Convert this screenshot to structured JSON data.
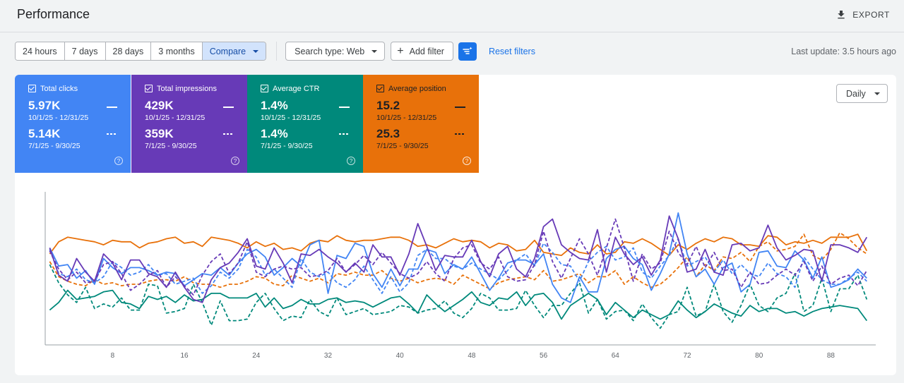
{
  "header": {
    "title": "Performance",
    "export_label": "EXPORT",
    "export_icon": "download-icon"
  },
  "toolbar": {
    "ranges": [
      "24 hours",
      "7 days",
      "28 days",
      "3 months"
    ],
    "compare_label": "Compare",
    "search_type_label": "Search type: Web",
    "add_filter_label": "Add filter",
    "reset_label": "Reset filters",
    "last_update": "Last update: 3.5 hours ago"
  },
  "metrics": [
    {
      "key": "clicks",
      "label": "Total clicks",
      "current": "5.97K",
      "current_range": "10/1/25 - 12/31/25",
      "previous": "5.14K",
      "previous_range": "7/1/25 - 9/30/25",
      "color": "#4285f4"
    },
    {
      "key": "impr",
      "label": "Total impressions",
      "current": "429K",
      "current_range": "10/1/25 - 12/31/25",
      "previous": "359K",
      "previous_range": "7/1/25 - 9/30/25",
      "color": "#673ab7"
    },
    {
      "key": "ctr",
      "label": "Average CTR",
      "current": "1.4%",
      "current_range": "10/1/25 - 12/31/25",
      "previous": "1.4%",
      "previous_range": "7/1/25 - 9/30/25",
      "color": "#00897b"
    },
    {
      "key": "pos",
      "label": "Average position",
      "current": "15.2",
      "current_range": "10/1/25 - 12/31/25",
      "previous": "25.3",
      "previous_range": "7/1/25 - 9/30/25",
      "color": "#e8710a"
    }
  ],
  "granularity": {
    "label": "Daily"
  },
  "chart_data": {
    "type": "line",
    "x": [
      1,
      2,
      3,
      4,
      5,
      6,
      7,
      8,
      9,
      10,
      11,
      12,
      13,
      14,
      15,
      16,
      17,
      18,
      19,
      20,
      21,
      22,
      23,
      24,
      25,
      26,
      27,
      28,
      29,
      30,
      31,
      32,
      33,
      34,
      35,
      36,
      37,
      38,
      39,
      40,
      41,
      42,
      43,
      44,
      45,
      46,
      47,
      48,
      49,
      50,
      51,
      52,
      53,
      54,
      55,
      56,
      57,
      58,
      59,
      60,
      61,
      62,
      63,
      64,
      65,
      66,
      67,
      68,
      69,
      70,
      71,
      72,
      73,
      74,
      75,
      76,
      77,
      78,
      79,
      80,
      81,
      82,
      83,
      84,
      85,
      86,
      87,
      88,
      89,
      90,
      91,
      92
    ],
    "xticks": [
      8,
      16,
      24,
      32,
      40,
      48,
      56,
      64,
      72,
      80,
      88
    ],
    "xlim": [
      0.5,
      93
    ],
    "ylim": [
      0,
      100
    ],
    "grid": false,
    "series": [
      {
        "key": "impr_cur",
        "color": "#673ab7",
        "dashed": false,
        "values": [
          64,
          46,
          42,
          57,
          48,
          42,
          60,
          54,
          43,
          56,
          56,
          47,
          45,
          38,
          48,
          38,
          30,
          28,
          43,
          51,
          54,
          61,
          70,
          52,
          50,
          64,
          54,
          41,
          60,
          59,
          63,
          58,
          54,
          48,
          54,
          48,
          66,
          58,
          58,
          46,
          60,
          80,
          65,
          49,
          59,
          58,
          58,
          69,
          55,
          45,
          60,
          65,
          50,
          45,
          57,
          78,
          83,
          66,
          61,
          57,
          56,
          76,
          48,
          71,
          60,
          53,
          58,
          46,
          56,
          85,
          70,
          48,
          50,
          63,
          48,
          46,
          66,
          67,
          62,
          64,
          79,
          64,
          56,
          59,
          63,
          62,
          42,
          66,
          66,
          64,
          61,
          71
        ]
      },
      {
        "key": "impr_prev",
        "color": "#673ab7",
        "dashed": true,
        "values": [
          62,
          50,
          43,
          48,
          41,
          42,
          53,
          55,
          47,
          36,
          40,
          46,
          49,
          38,
          45,
          39,
          33,
          46,
          55,
          60,
          47,
          54,
          68,
          48,
          45,
          50,
          52,
          50,
          51,
          45,
          46,
          49,
          57,
          48,
          53,
          59,
          53,
          61,
          54,
          47,
          44,
          47,
          55,
          47,
          42,
          57,
          64,
          66,
          54,
          50,
          58,
          45,
          42,
          43,
          53,
          75,
          55,
          44,
          57,
          70,
          60,
          46,
          64,
          83,
          64,
          42,
          60,
          50,
          54,
          75,
          61,
          53,
          65,
          51,
          61,
          49,
          50,
          38,
          48,
          40,
          41,
          46,
          50,
          46,
          55,
          42,
          52,
          40,
          44,
          46,
          39,
          49
        ]
      },
      {
        "key": "clicks_cur",
        "color": "#4285f4",
        "dashed": false,
        "values": [
          64,
          52,
          53,
          44,
          49,
          40,
          57,
          51,
          47,
          51,
          51,
          49,
          46,
          48,
          47,
          39,
          43,
          47,
          46,
          51,
          46,
          54,
          60,
          63,
          58,
          46,
          51,
          57,
          52,
          66,
          69,
          34,
          59,
          57,
          67,
          65,
          47,
          38,
          50,
          39,
          50,
          50,
          63,
          61,
          47,
          53,
          50,
          58,
          47,
          36,
          44,
          54,
          56,
          56,
          53,
          60,
          40,
          31,
          28,
          45,
          35,
          35,
          57,
          63,
          65,
          57,
          53,
          36,
          47,
          60,
          87,
          60,
          45,
          50,
          40,
          51,
          54,
          35,
          40,
          61,
          62,
          52,
          51,
          62,
          56,
          44,
          58,
          38,
          40,
          43,
          50,
          44
        ]
      },
      {
        "key": "clicks_prev",
        "color": "#4285f4",
        "dashed": true,
        "values": [
          63,
          47,
          45,
          50,
          43,
          41,
          45,
          55,
          51,
          46,
          48,
          53,
          46,
          47,
          40,
          42,
          44,
          34,
          39,
          48,
          44,
          50,
          63,
          58,
          46,
          50,
          44,
          38,
          57,
          48,
          45,
          48,
          41,
          38,
          43,
          52,
          43,
          34,
          45,
          35,
          41,
          59,
          63,
          57,
          57,
          52,
          50,
          54,
          50,
          47,
          43,
          49,
          56,
          60,
          52,
          67,
          61,
          53,
          52,
          42,
          55,
          61,
          65,
          56,
          58,
          64,
          48,
          44,
          52,
          59,
          70,
          52,
          55,
          58,
          48,
          56,
          47,
          53,
          47,
          45,
          54,
          47,
          45,
          38,
          58,
          50,
          43,
          40,
          40,
          44,
          48,
          42
        ]
      },
      {
        "key": "ctr_cur",
        "color": "#00897b",
        "dashed": false,
        "values": [
          23,
          28,
          36,
          30,
          31,
          32,
          35,
          36,
          28,
          27,
          24,
          32,
          30,
          32,
          28,
          33,
          29,
          30,
          34,
          34,
          31,
          31,
          31,
          34,
          25,
          31,
          24,
          26,
          30,
          27,
          27,
          30,
          31,
          28,
          29,
          28,
          25,
          28,
          31,
          32,
          27,
          21,
          33,
          27,
          22,
          26,
          30,
          35,
          28,
          26,
          31,
          30,
          35,
          26,
          33,
          34,
          28,
          17,
          26,
          30,
          34,
          30,
          20,
          28,
          23,
          18,
          23,
          20,
          17,
          20,
          29,
          23,
          18,
          22,
          27,
          24,
          21,
          19,
          26,
          22,
          24,
          24,
          21,
          22,
          19,
          22,
          24,
          25,
          26,
          25,
          24,
          16
        ]
      },
      {
        "key": "ctr_prev",
        "color": "#00897b",
        "dashed": true,
        "values": [
          53,
          41,
          33,
          28,
          38,
          24,
          27,
          25,
          31,
          23,
          23,
          40,
          39,
          21,
          22,
          24,
          40,
          28,
          13,
          29,
          16,
          16,
          17,
          28,
          34,
          24,
          16,
          19,
          18,
          30,
          22,
          19,
          31,
          20,
          22,
          24,
          20,
          21,
          22,
          26,
          25,
          21,
          23,
          24,
          29,
          21,
          18,
          24,
          34,
          31,
          23,
          23,
          24,
          36,
          26,
          18,
          26,
          26,
          34,
          41,
          21,
          30,
          17,
          22,
          23,
          16,
          27,
          18,
          11,
          20,
          22,
          38,
          19,
          22,
          40,
          22,
          15,
          26,
          40,
          26,
          22,
          31,
          34,
          47,
          22,
          26,
          44,
          22,
          37,
          37,
          46,
          30
        ]
      },
      {
        "key": "pos_cur",
        "color": "#e8710a",
        "dashed": false,
        "values": [
          60,
          68,
          71,
          70,
          69,
          68,
          66,
          69,
          68,
          68,
          64,
          67,
          68,
          70,
          71,
          67,
          68,
          65,
          71,
          70,
          69,
          67,
          64,
          68,
          65,
          67,
          63,
          64,
          62,
          67,
          69,
          68,
          72,
          69,
          68,
          69,
          69,
          70,
          71,
          71,
          69,
          65,
          66,
          64,
          67,
          70,
          68,
          69,
          68,
          64,
          67,
          66,
          62,
          63,
          69,
          61,
          60,
          59,
          64,
          61,
          60,
          66,
          60,
          61,
          68,
          67,
          70,
          67,
          63,
          59,
          66,
          63,
          67,
          70,
          68,
          71,
          70,
          66,
          66,
          65,
          72,
          71,
          66,
          68,
          67,
          69,
          67,
          71,
          71,
          71,
          73,
          62
        ]
      },
      {
        "key": "pos_prev",
        "color": "#e8710a",
        "dashed": true,
        "values": [
          55,
          45,
          42,
          40,
          39,
          43,
          40,
          41,
          39,
          40,
          40,
          42,
          43,
          43,
          42,
          45,
          41,
          40,
          40,
          38,
          40,
          40,
          42,
          45,
          44,
          40,
          39,
          46,
          44,
          42,
          44,
          41,
          47,
          46,
          48,
          46,
          46,
          49,
          44,
          42,
          44,
          41,
          43,
          44,
          43,
          40,
          46,
          43,
          40,
          37,
          41,
          43,
          44,
          45,
          43,
          49,
          42,
          43,
          45,
          47,
          41,
          45,
          45,
          49,
          40,
          45,
          41,
          38,
          40,
          45,
          51,
          58,
          45,
          53,
          49,
          58,
          57,
          61,
          55,
          65,
          68,
          62,
          63,
          65,
          73,
          59,
          56,
          63,
          74,
          70,
          64,
          60
        ]
      }
    ]
  }
}
